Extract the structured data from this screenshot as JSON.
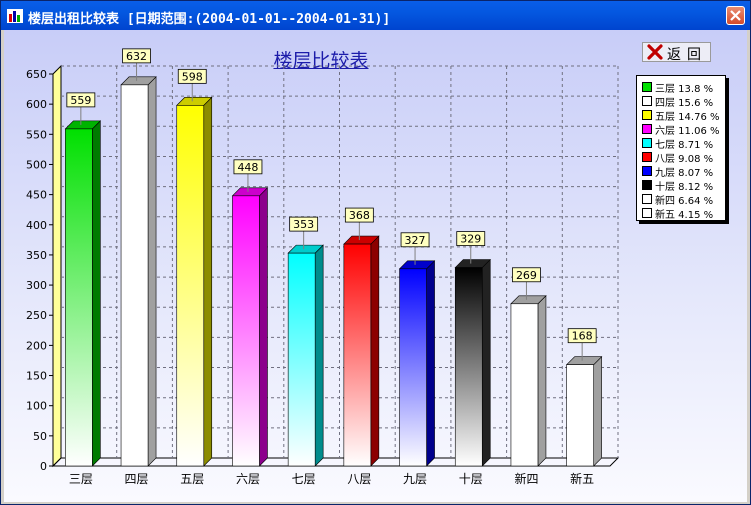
{
  "window": {
    "title": "楼层出租比较表 [日期范围:(2004-01-01--2004-01-31)]"
  },
  "toolbar": {
    "back_label": "返回"
  },
  "icons": {
    "app": "bar-chart-icon",
    "close": "close-icon",
    "back": "red-x-icon"
  },
  "chart_data": {
    "type": "bar",
    "title": "楼层比较表",
    "categories": [
      "三层",
      "四层",
      "五层",
      "六层",
      "七层",
      "八层",
      "九层",
      "十层",
      "新四",
      "新五"
    ],
    "values": [
      559,
      632,
      598,
      448,
      353,
      368,
      327,
      329,
      269,
      168
    ],
    "ylim": [
      0,
      650
    ],
    "yticks": [
      0,
      50,
      100,
      150,
      200,
      250,
      300,
      350,
      400,
      450,
      500,
      550,
      600,
      650
    ],
    "grid": true,
    "colors": [
      "#00e000",
      "#ffffff",
      "#ffff00",
      "#ff00ff",
      "#00ffff",
      "#ff0000",
      "#0000ff",
      "#000000",
      "#ffffff",
      "#ffffff"
    ],
    "legend": {
      "position": "right",
      "entries": [
        "三层 13.8 %",
        "四层 15.6 %",
        "五层 14.76 %",
        "六层 11.06 %",
        "七层 8.71 %",
        "八层 9.08 %",
        "九层 8.07 %",
        "十层 8.12 %",
        "新四 6.64 %",
        "新五 4.15 %"
      ]
    }
  }
}
